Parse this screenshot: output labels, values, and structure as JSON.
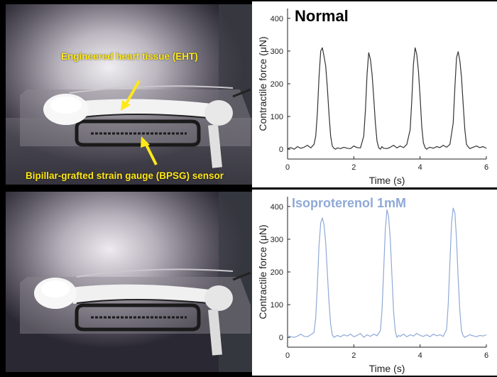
{
  "annotations": {
    "eht_label": "Engineered heart tissue (EHT)",
    "sensor_label": "Bipillar-grafted strain gauge (BPSG) sensor"
  },
  "colors": {
    "annotation": "#ffe81a",
    "normal_trace": "#333333",
    "iso_trace": "#8fa9d6",
    "iso_title": "#8fa9d6"
  },
  "chart_data": [
    {
      "type": "line",
      "title": "Normal",
      "xlabel": "Time (s)",
      "ylabel": "Contractile force (μN)",
      "xlim": [
        0,
        6
      ],
      "ylim": [
        -30,
        430
      ],
      "xticks": [
        0,
        2,
        4,
        6
      ],
      "yticks": [
        0,
        100,
        200,
        300,
        400
      ],
      "grid": false,
      "series": [
        {
          "color": "#333333",
          "x": [
            0.0,
            0.1,
            0.2,
            0.3,
            0.4,
            0.5,
            0.6,
            0.7,
            0.8,
            0.85,
            0.9,
            0.95,
            1.0,
            1.05,
            1.1,
            1.15,
            1.2,
            1.25,
            1.3,
            1.35,
            1.4,
            1.45,
            1.5,
            1.6,
            1.7,
            1.8,
            1.9,
            2.0,
            2.1,
            2.2,
            2.3,
            2.35,
            2.4,
            2.45,
            2.5,
            2.55,
            2.6,
            2.65,
            2.7,
            2.75,
            2.8,
            2.85,
            2.9,
            3.0,
            3.1,
            3.2,
            3.3,
            3.4,
            3.5,
            3.6,
            3.7,
            3.75,
            3.8,
            3.85,
            3.9,
            3.95,
            4.0,
            4.05,
            4.1,
            4.15,
            4.2,
            4.25,
            4.3,
            4.4,
            4.5,
            4.6,
            4.7,
            4.8,
            4.9,
            5.0,
            5.05,
            5.1,
            5.15,
            5.2,
            5.25,
            5.3,
            5.35,
            5.4,
            5.45,
            5.5,
            5.6,
            5.7,
            5.8,
            5.9,
            6.0
          ],
          "values": [
            2,
            5,
            0,
            8,
            3,
            6,
            12,
            4,
            15,
            40,
            110,
            220,
            300,
            310,
            285,
            255,
            190,
            110,
            40,
            10,
            3,
            0,
            4,
            2,
            6,
            3,
            2,
            10,
            5,
            4,
            40,
            120,
            230,
            295,
            275,
            230,
            160,
            80,
            25,
            5,
            0,
            8,
            3,
            2,
            6,
            12,
            4,
            10,
            5,
            15,
            60,
            150,
            260,
            310,
            290,
            240,
            160,
            70,
            20,
            5,
            0,
            4,
            6,
            3,
            8,
            5,
            12,
            6,
            15,
            80,
            190,
            280,
            298,
            270,
            220,
            140,
            60,
            15,
            8,
            2,
            6,
            10,
            5,
            8,
            3
          ]
        }
      ]
    },
    {
      "type": "line",
      "title": "Isoproterenol 1mM",
      "xlabel": "Time (s)",
      "ylabel": "Contractile force (μN)",
      "xlim": [
        0,
        6
      ],
      "ylim": [
        -30,
        430
      ],
      "xticks": [
        0,
        2,
        4,
        6
      ],
      "yticks": [
        0,
        100,
        200,
        300,
        400
      ],
      "grid": false,
      "series": [
        {
          "color": "#8fa9d6",
          "x": [
            0.0,
            0.1,
            0.2,
            0.3,
            0.4,
            0.5,
            0.6,
            0.7,
            0.8,
            0.85,
            0.9,
            0.95,
            1.0,
            1.05,
            1.1,
            1.15,
            1.2,
            1.25,
            1.3,
            1.35,
            1.4,
            1.45,
            1.5,
            1.6,
            1.7,
            1.8,
            1.9,
            2.0,
            2.1,
            2.2,
            2.3,
            2.4,
            2.5,
            2.6,
            2.7,
            2.8,
            2.85,
            2.9,
            2.95,
            3.0,
            3.05,
            3.1,
            3.15,
            3.2,
            3.25,
            3.3,
            3.35,
            3.4,
            3.5,
            3.6,
            3.7,
            3.8,
            3.9,
            4.0,
            4.1,
            4.2,
            4.3,
            4.4,
            4.5,
            4.6,
            4.7,
            4.8,
            4.85,
            4.9,
            4.95,
            5.0,
            5.05,
            5.1,
            5.15,
            5.2,
            5.25,
            5.3,
            5.35,
            5.4,
            5.5,
            5.6,
            5.7,
            5.8,
            5.9,
            6.0
          ],
          "values": [
            5,
            2,
            0,
            4,
            10,
            3,
            2,
            8,
            15,
            60,
            160,
            280,
            350,
            365,
            345,
            290,
            200,
            110,
            40,
            8,
            0,
            3,
            6,
            2,
            8,
            4,
            10,
            2,
            6,
            12,
            0,
            8,
            3,
            10,
            5,
            20,
            80,
            200,
            330,
            390,
            370,
            300,
            190,
            80,
            20,
            0,
            6,
            3,
            10,
            2,
            8,
            4,
            12,
            6,
            3,
            8,
            2,
            10,
            5,
            8,
            3,
            25,
            100,
            230,
            350,
            395,
            380,
            300,
            180,
            80,
            20,
            5,
            0,
            3,
            8,
            5,
            2,
            6,
            4,
            8
          ]
        }
      ]
    }
  ]
}
